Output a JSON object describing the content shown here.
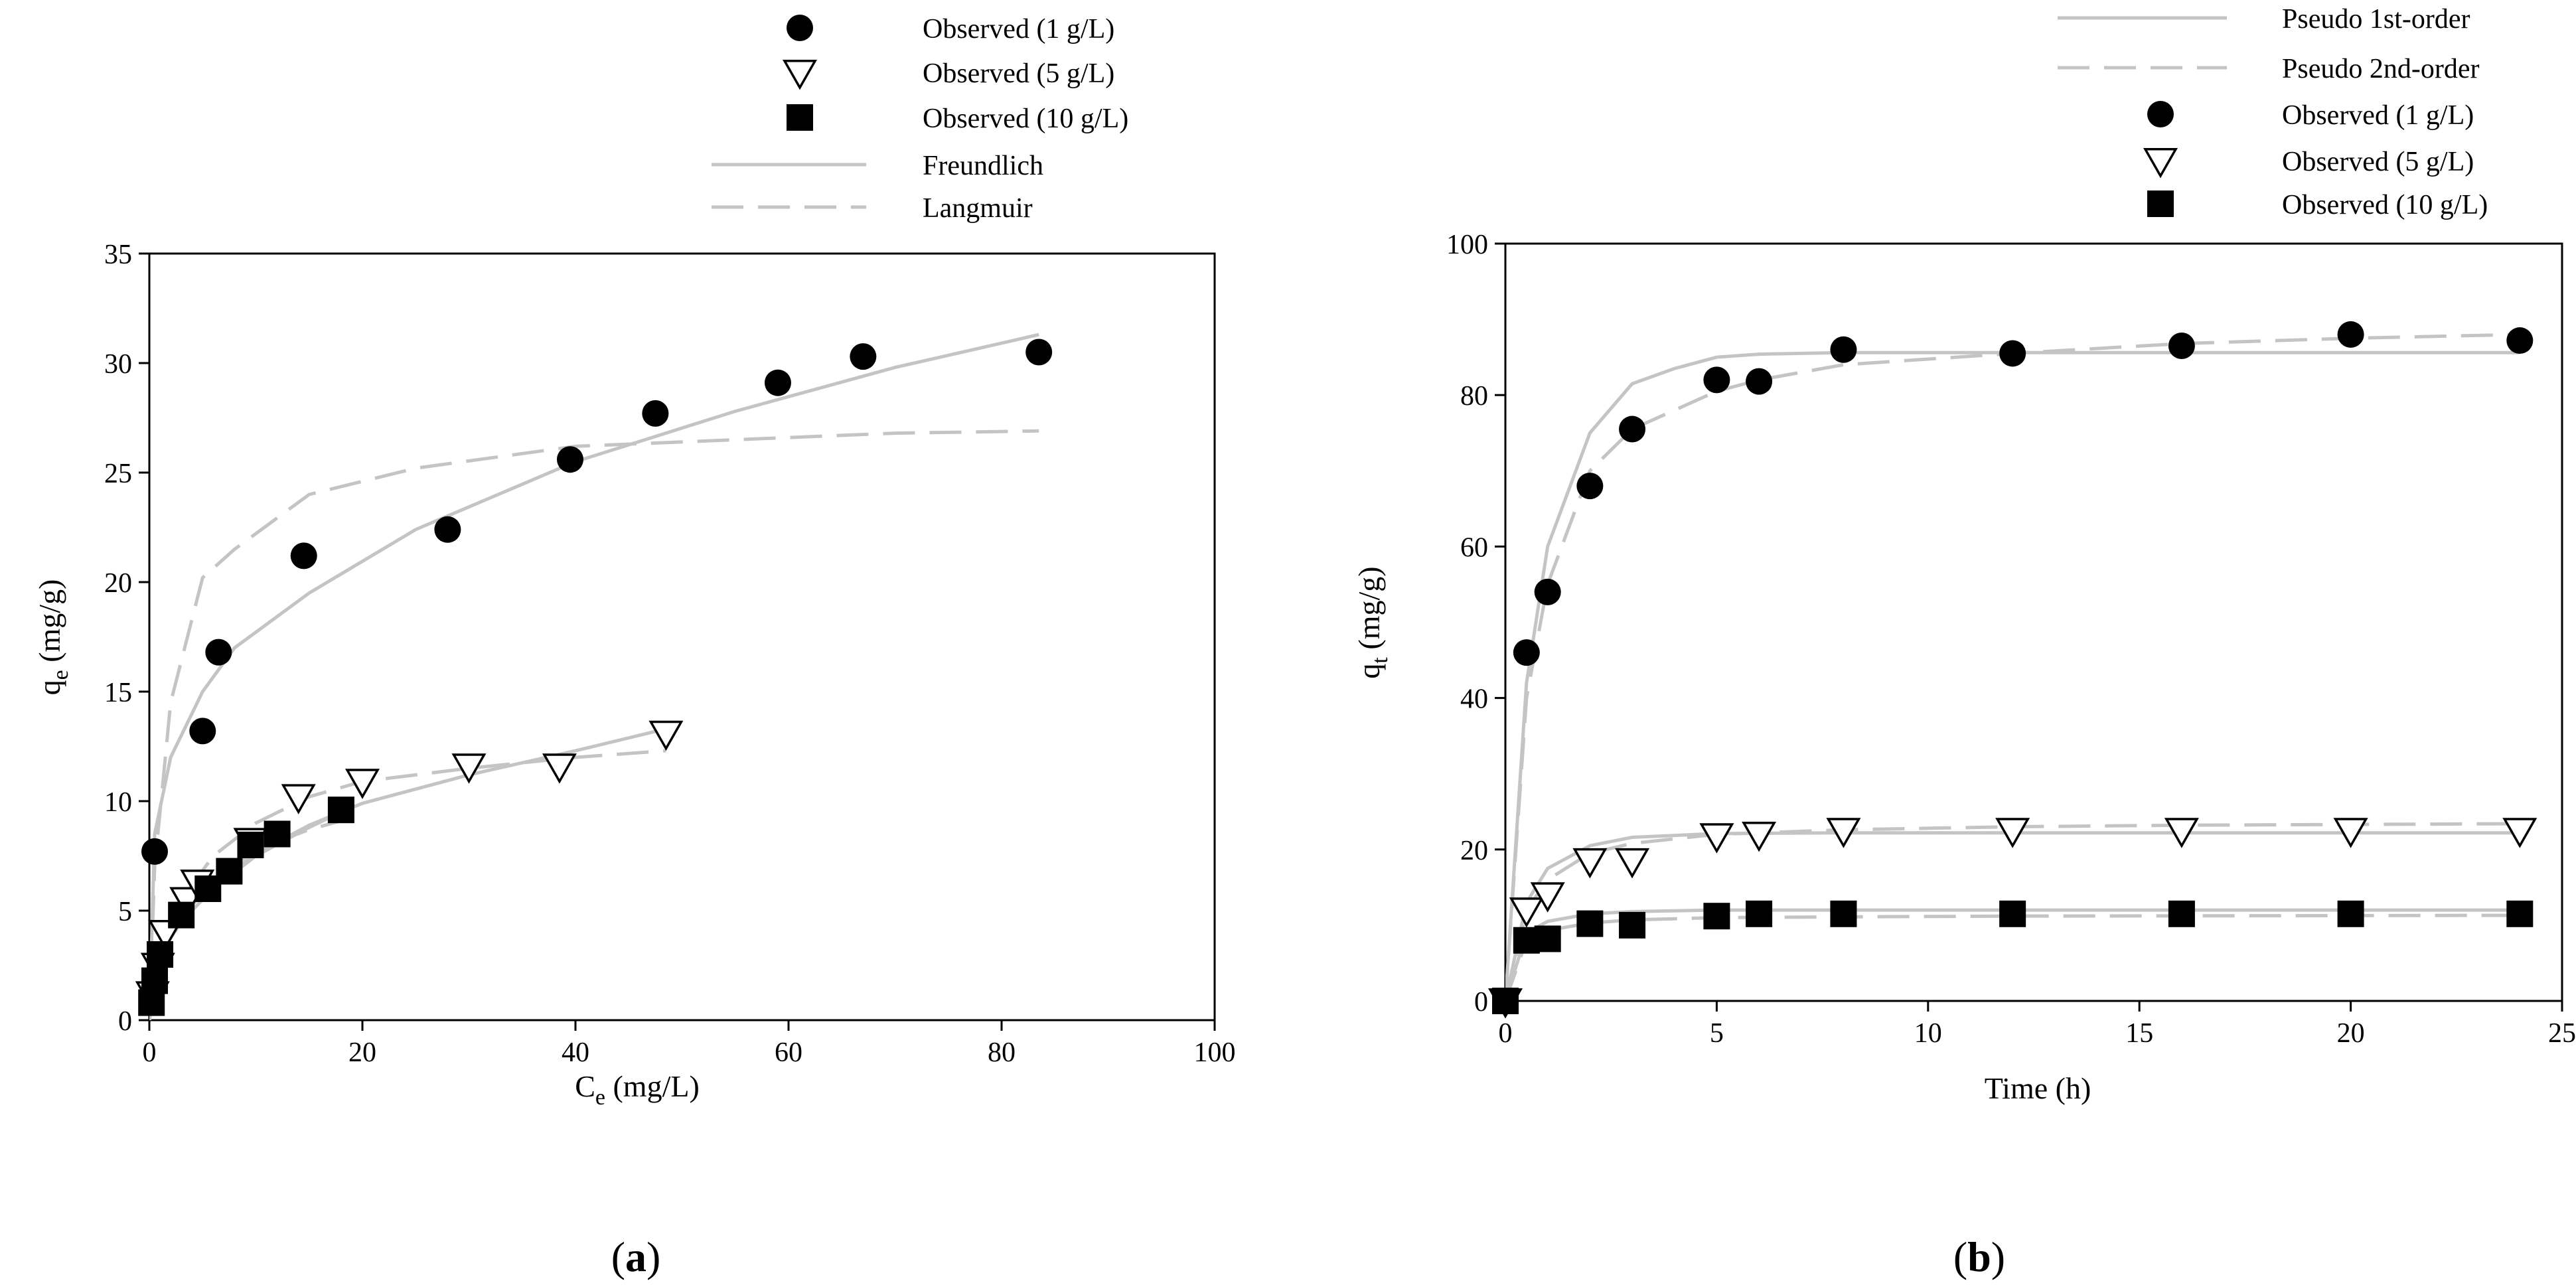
{
  "colors": {
    "axis": "#000000",
    "fit_line": "#c4c4c4",
    "marker_fill": "#000000",
    "marker_open_fill": "#ffffff"
  },
  "chart_data": [
    {
      "panel_label": "(a)",
      "panel_letter": "a",
      "type": "scatter",
      "xlabel": "C",
      "xlabel_sub": "e",
      "xlabel_unit": " (mg/L)",
      "ylabel": "q",
      "ylabel_sub": "e",
      "ylabel_unit": " (mg/g)",
      "xlim": [
        0,
        100
      ],
      "ylim": [
        0,
        35
      ],
      "xticks": [
        0,
        20,
        40,
        60,
        80,
        100
      ],
      "yticks": [
        0,
        5,
        10,
        15,
        20,
        25,
        30,
        35
      ],
      "legend_position": "top-center",
      "series": [
        {
          "name": "Observed (1 g/L)",
          "marker": "circle",
          "x": [
            0.5,
            5,
            6.5,
            14.5,
            28,
            39.5,
            47.5,
            59,
            67,
            83.5
          ],
          "y": [
            7.7,
            13.2,
            16.8,
            21.2,
            22.4,
            25.6,
            27.7,
            29.1,
            30.3,
            30.5
          ]
        },
        {
          "name": "Observed (5 g/L)",
          "marker": "triangle-down",
          "x": [
            0.3,
            0.8,
            1.5,
            3.5,
            4.5,
            9.5,
            14,
            20,
            30,
            38.5,
            48.5
          ],
          "y": [
            1.2,
            2.5,
            4.0,
            5.5,
            6.3,
            8.2,
            10.2,
            10.9,
            11.6,
            11.6,
            13.1
          ]
        },
        {
          "name": "Observed (10 g/L)",
          "marker": "square",
          "x": [
            0.2,
            0.5,
            1,
            3,
            5.5,
            7.5,
            9.5,
            12,
            18
          ],
          "y": [
            0.8,
            1.8,
            3.0,
            4.8,
            6.0,
            6.8,
            8.0,
            8.5,
            9.6
          ]
        }
      ],
      "fits": [
        {
          "name": "Freundlich",
          "style": "solid",
          "segments": [
            {
              "x": [
                0,
                0.5,
                2,
                5,
                8,
                15,
                25,
                40,
                55,
                70,
                83.5
              ],
              "y": [
                0,
                8.5,
                12.0,
                15.0,
                17.0,
                19.5,
                22.4,
                25.5,
                27.8,
                29.8,
                31.3
              ]
            },
            {
              "x": [
                0,
                1,
                3,
                6,
                10,
                15,
                20,
                30,
                40,
                48.5
              ],
              "y": [
                0,
                3.2,
                4.8,
                6.2,
                7.6,
                8.9,
                9.9,
                11.2,
                12.3,
                13.3
              ]
            },
            {
              "x": [
                0,
                1,
                3,
                6,
                10,
                15,
                18
              ],
              "y": [
                0,
                3.0,
                4.5,
                6.0,
                7.5,
                8.8,
                9.5
              ]
            }
          ]
        },
        {
          "name": "Langmuir",
          "style": "dashed",
          "segments": [
            {
              "x": [
                0,
                0.5,
                2,
                5,
                8,
                15,
                25,
                40,
                55,
                70,
                83.5
              ],
              "y": [
                0,
                7.0,
                14.5,
                20.2,
                21.5,
                24.0,
                25.2,
                26.2,
                26.5,
                26.8,
                26.9
              ]
            },
            {
              "x": [
                0,
                1,
                3,
                6,
                10,
                15,
                20,
                30,
                40,
                48.5
              ],
              "y": [
                0,
                3.0,
                5.5,
                7.5,
                9.0,
                10.2,
                10.9,
                11.5,
                12.0,
                12.3
              ]
            },
            {
              "x": [
                0,
                1,
                3,
                6,
                10,
                15,
                18
              ],
              "y": [
                0,
                2.6,
                4.6,
                6.4,
                7.8,
                8.7,
                9.1
              ]
            }
          ]
        }
      ],
      "legend_entries": [
        "Observed (1 g/L)",
        "Observed (5 g/L)",
        "Observed (10 g/L)",
        "Freundlich",
        "Langmuir"
      ]
    },
    {
      "panel_label": "(b)",
      "panel_letter": "b",
      "type": "scatter",
      "xlabel": "Time (h)",
      "xlabel_sub": "",
      "xlabel_unit": "",
      "ylabel": "q",
      "ylabel_sub": "t",
      "ylabel_unit": " (mg/g)",
      "xlim": [
        0,
        25
      ],
      "ylim": [
        0,
        100
      ],
      "xticks": [
        0,
        5,
        10,
        15,
        20,
        25
      ],
      "yticks": [
        0,
        20,
        40,
        60,
        80,
        100
      ],
      "legend_position": "top-center",
      "series": [
        {
          "name": "Observed (1 g/L)",
          "marker": "circle",
          "x": [
            0,
            0.5,
            1,
            2,
            3,
            5,
            6,
            8,
            12,
            16,
            20,
            24
          ],
          "y": [
            0,
            46,
            54,
            68,
            75.5,
            82,
            81.8,
            86,
            85.5,
            86.5,
            88,
            87.2
          ]
        },
        {
          "name": "Observed (5 g/L)",
          "marker": "triangle-down",
          "x": [
            0,
            0.5,
            1,
            2,
            3,
            5,
            6,
            8,
            12,
            16,
            20,
            24
          ],
          "y": [
            0,
            12,
            14,
            18.5,
            18.5,
            21.8,
            22,
            22.5,
            22.5,
            22.5,
            22.5,
            22.5
          ]
        },
        {
          "name": "Observed (10 g/L)",
          "marker": "square",
          "x": [
            0,
            0.5,
            1,
            2,
            3,
            5,
            6,
            8,
            12,
            16,
            20,
            24
          ],
          "y": [
            0,
            8,
            8.2,
            10.2,
            10,
            11.2,
            11.5,
            11.5,
            11.5,
            11.5,
            11.5,
            11.5
          ]
        }
      ],
      "fits": [
        {
          "name": "Pseudo 1st-order",
          "style": "solid",
          "segments": [
            {
              "x": [
                0,
                0.5,
                1,
                2,
                3,
                4,
                5,
                6,
                8,
                12,
                16,
                20,
                24
              ],
              "y": [
                0,
                42,
                60,
                75,
                81.5,
                83.5,
                85,
                85.4,
                85.6,
                85.6,
                85.6,
                85.6,
                85.6
              ]
            },
            {
              "x": [
                0,
                0.5,
                1,
                2,
                3,
                5,
                8,
                12,
                24
              ],
              "y": [
                0,
                13,
                17.5,
                20.5,
                21.6,
                22.1,
                22.2,
                22.2,
                22.2
              ]
            },
            {
              "x": [
                0,
                0.5,
                1,
                2,
                3,
                5,
                8,
                12,
                24
              ],
              "y": [
                0,
                9.0,
                10.5,
                11.5,
                11.8,
                12.0,
                12.0,
                12.0,
                12.0
              ]
            }
          ]
        },
        {
          "name": "Pseudo 2nd-order",
          "style": "dashed",
          "segments": [
            {
              "x": [
                0,
                0.5,
                1,
                2,
                3,
                5,
                6,
                8,
                12,
                16,
                20,
                24
              ],
              "y": [
                0,
                40,
                55,
                70,
                75.5,
                80.5,
                82,
                84,
                85.5,
                86.8,
                87.5,
                88
              ]
            },
            {
              "x": [
                0,
                0.5,
                1,
                2,
                3,
                5,
                8,
                12,
                16,
                24
              ],
              "y": [
                0,
                12,
                16,
                19.5,
                20.8,
                22,
                22.6,
                23,
                23.2,
                23.4
              ]
            },
            {
              "x": [
                0,
                0.5,
                1,
                2,
                3,
                5,
                8,
                12,
                24
              ],
              "y": [
                0,
                8.0,
                9.3,
                10.3,
                10.7,
                11.0,
                11.1,
                11.2,
                11.3
              ]
            }
          ]
        }
      ],
      "legend_entries": [
        "Pseudo 1st-order",
        "Pseudo 2nd-order",
        "Observed (1 g/L)",
        "Observed (5 g/L)",
        "Observed (10 g/L)"
      ]
    }
  ]
}
